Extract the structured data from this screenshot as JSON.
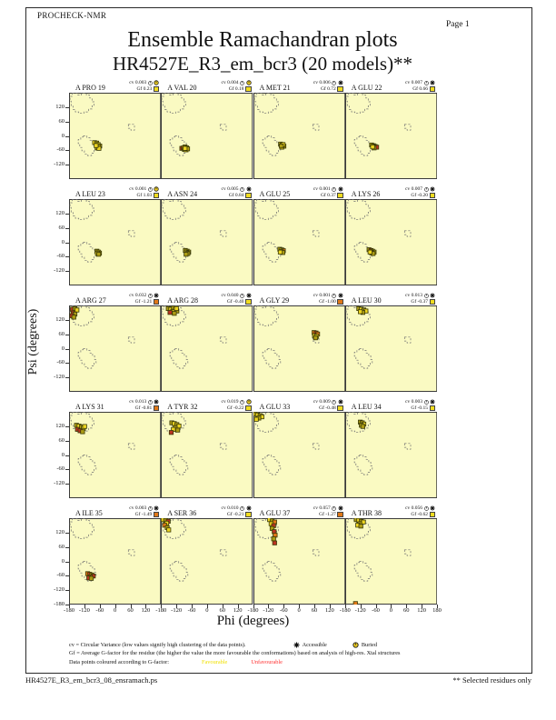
{
  "page": {
    "app_label": "PROCHECK-NMR",
    "page_number_label": "Page  1",
    "title": "Ensemble Ramachandran plots",
    "subtitle": "HR4527E_R3_em_bcr3 (20 models)**",
    "footer_left": "HR4527E_R3_em_bcr3_08_ensramach.ps",
    "footer_right": "** Selected residues only"
  },
  "axes": {
    "x_label": "Phi (degrees)",
    "y_label": "Psi (degrees)",
    "x_ticks_per_plot": [
      -180,
      -120,
      -60,
      0,
      60,
      120
    ],
    "x_end_tick": 180,
    "y_ticks_per_plot": [
      120,
      60,
      0,
      -60,
      -120
    ],
    "y_end_tick": -180
  },
  "legend": {
    "line1_text": "cv = Circular Variance (low values signify high clustering of the data points).",
    "accessible_label": "Accessible",
    "buried_label": "Buried",
    "line2_text": "Gf = Average G-factor for the residue (the higher the value the more favourable the conformations)  based on analysis of high-res. Xtal structures",
    "line3_prefix": "Data points coloured according to G-factor:",
    "favourable_label": "Favourable",
    "unfavourable_label": "Unfavourable"
  },
  "colors": {
    "plot_bg": "#FAFAC2",
    "plot_border": "#3a3a3a",
    "region_stroke": "#707070",
    "point_yellow": "#EDD520",
    "point_olive": "#AC9C14",
    "point_orange": "#E07818",
    "point_red": "#BB3322",
    "swatch_favourable": "#F0DC20",
    "swatch_unfavourable": "#E07818",
    "favourable_text": "#F0E000",
    "unfavourable_text": "#FF3030",
    "buried_fill": "#E8C820"
  },
  "chart_data": {
    "type": "scatter",
    "title": "Ensemble Ramachandran plots",
    "xlabel": "Phi (degrees)",
    "ylabel": "Psi (degrees)",
    "xlim": [
      -180,
      180
    ],
    "ylim": [
      -180,
      180
    ],
    "grid": {
      "rows": 5,
      "cols": 4
    },
    "regions": {
      "beta": [
        [
          -168,
          178
        ],
        [
          -148,
          178
        ],
        [
          -148,
          170
        ],
        [
          -132,
          170
        ],
        [
          -132,
          178
        ],
        [
          -112,
          178
        ],
        [
          -112,
          170
        ],
        [
          -100,
          170
        ],
        [
          -100,
          158
        ],
        [
          -90,
          158
        ],
        [
          -90,
          142
        ],
        [
          -82,
          142
        ],
        [
          -82,
          125
        ],
        [
          -90,
          125
        ],
        [
          -90,
          112
        ],
        [
          -104,
          112
        ],
        [
          -104,
          100
        ],
        [
          -122,
          100
        ],
        [
          -122,
          94
        ],
        [
          -142,
          94
        ],
        [
          -142,
          100
        ],
        [
          -155,
          100
        ],
        [
          -155,
          110
        ],
        [
          -164,
          110
        ],
        [
          -164,
          124
        ],
        [
          -172,
          124
        ],
        [
          -172,
          145
        ],
        [
          -176,
          145
        ],
        [
          -176,
          165
        ],
        [
          -168,
          165
        ]
      ],
      "alpha": [
        [
          -125,
          0
        ],
        [
          -110,
          0
        ],
        [
          -110,
          -8
        ],
        [
          -98,
          -8
        ],
        [
          -98,
          -18
        ],
        [
          -88,
          -18
        ],
        [
          -88,
          -30
        ],
        [
          -80,
          -30
        ],
        [
          -80,
          -45
        ],
        [
          -74,
          -45
        ],
        [
          -74,
          -60
        ],
        [
          -82,
          -60
        ],
        [
          -82,
          -72
        ],
        [
          -92,
          -72
        ],
        [
          -92,
          -82
        ],
        [
          -108,
          -82
        ],
        [
          -108,
          -75
        ],
        [
          -120,
          -75
        ],
        [
          -120,
          -62
        ],
        [
          -130,
          -62
        ],
        [
          -130,
          -48
        ],
        [
          -138,
          -48
        ],
        [
          -138,
          -32
        ],
        [
          -144,
          -32
        ],
        [
          -144,
          -15
        ],
        [
          -134,
          -15
        ],
        [
          -134,
          -5
        ],
        [
          -125,
          -5
        ]
      ],
      "left_alpha": [
        [
          52,
          48
        ],
        [
          76,
          48
        ],
        [
          76,
          24
        ],
        [
          62,
          24
        ],
        [
          62,
          32
        ],
        [
          52,
          32
        ]
      ]
    },
    "subplots": [
      {
        "label": "A PRO 19",
        "cv": "0.003",
        "gf": "0.23",
        "access": "buried",
        "gf_class": "favourable",
        "points": [
          [
            -80,
            -28,
            "y"
          ],
          [
            -72,
            -30,
            "o"
          ],
          [
            -66,
            -36,
            "y"
          ],
          [
            -60,
            -42,
            "o"
          ],
          [
            -66,
            -44,
            "y"
          ],
          [
            -70,
            -50,
            "o"
          ],
          [
            -63,
            -52,
            "y"
          ],
          [
            -74,
            -40,
            "y"
          ]
        ]
      },
      {
        "label": "A VAL 20",
        "cv": "0.004",
        "gf": "0.18",
        "access": "buried",
        "gf_class": "favourable",
        "points": [
          [
            -98,
            -52,
            "r"
          ],
          [
            -92,
            -50,
            "O"
          ],
          [
            -85,
            -46,
            "o"
          ],
          [
            -79,
            -50,
            "y"
          ],
          [
            -88,
            -56,
            "o"
          ],
          [
            -81,
            -58,
            "y"
          ],
          [
            -75,
            -54,
            "o"
          ],
          [
            -85,
            -52,
            "y"
          ]
        ]
      },
      {
        "label": "A MET 21",
        "cv": "0.006",
        "gf": "0.72",
        "access": "accessible",
        "gf_class": "favourable",
        "points": [
          [
            -74,
            -34,
            "o"
          ],
          [
            -67,
            -38,
            "y"
          ],
          [
            -61,
            -43,
            "o"
          ],
          [
            -69,
            -47,
            "y"
          ],
          [
            -64,
            -36,
            "y"
          ],
          [
            -71,
            -42,
            "o"
          ]
        ]
      },
      {
        "label": "A GLU 22",
        "cv": "0.007",
        "gf": "0.66",
        "access": "accessible",
        "gf_class": "favourable",
        "points": [
          [
            -77,
            -38,
            "o"
          ],
          [
            -69,
            -41,
            "y"
          ],
          [
            -63,
            -44,
            "y"
          ],
          [
            -57,
            -47,
            "r"
          ],
          [
            -67,
            -50,
            "o"
          ],
          [
            -73,
            -46,
            "y"
          ]
        ]
      },
      {
        "label": "A LEU 23",
        "cv": "0.001",
        "gf": "1.03",
        "access": "buried",
        "gf_class": "favourable",
        "points": [
          [
            -71,
            -37,
            "o"
          ],
          [
            -65,
            -41,
            "y"
          ],
          [
            -61,
            -45,
            "o"
          ],
          [
            -69,
            -46,
            "y"
          ],
          [
            -64,
            -50,
            "o"
          ]
        ]
      },
      {
        "label": "A ASN 24",
        "cv": "0.005",
        "gf": "0.84",
        "access": "accessible",
        "gf_class": "favourable",
        "points": [
          [
            -84,
            -34,
            "o"
          ],
          [
            -77,
            -37,
            "y"
          ],
          [
            -71,
            -41,
            "o"
          ],
          [
            -79,
            -44,
            "y"
          ],
          [
            -74,
            -47,
            "o"
          ],
          [
            -81,
            -50,
            "o"
          ]
        ]
      },
      {
        "label": "A GLU 25",
        "cv": "0.001",
        "gf": "0.37",
        "access": "accessible",
        "gf_class": "favourable",
        "points": [
          [
            -77,
            -29,
            "o"
          ],
          [
            -69,
            -32,
            "y"
          ],
          [
            -63,
            -35,
            "O"
          ],
          [
            -71,
            -39,
            "y"
          ],
          [
            -65,
            -43,
            "o"
          ],
          [
            -75,
            -41,
            "y"
          ]
        ]
      },
      {
        "label": "A LYS 26",
        "cv": "0.007",
        "gf": "-0.20",
        "access": "accessible",
        "gf_class": "favourable",
        "points": [
          [
            -87,
            -31,
            "o"
          ],
          [
            -79,
            -34,
            "r"
          ],
          [
            -73,
            -37,
            "y"
          ],
          [
            -67,
            -41,
            "o"
          ],
          [
            -77,
            -44,
            "r"
          ],
          [
            -71,
            -47,
            "o"
          ],
          [
            -83,
            -41,
            "y"
          ]
        ]
      },
      {
        "label": "A ARG 27",
        "cv": "0.032",
        "gf": "-1.21",
        "access": "accessible",
        "gf_class": "unfavourable",
        "points": [
          [
            -167,
            164,
            "r"
          ],
          [
            -157,
            167,
            "o"
          ],
          [
            -149,
            161,
            "y"
          ],
          [
            -164,
            149,
            "r"
          ],
          [
            -157,
            144,
            "o"
          ],
          [
            -169,
            137,
            "r"
          ],
          [
            -161,
            131,
            "o"
          ]
        ]
      },
      {
        "label": "A ARG 28",
        "cv": "0.040",
        "gf": "-0.40",
        "access": "accessible",
        "gf_class": "favourable",
        "points": [
          [
            -151,
            167,
            "o"
          ],
          [
            -141,
            164,
            "y"
          ],
          [
            -131,
            169,
            "o"
          ],
          [
            -124,
            161,
            "y"
          ],
          [
            -117,
            157,
            "o"
          ],
          [
            -134,
            154,
            "y"
          ],
          [
            -127,
            147,
            "o"
          ],
          [
            -144,
            151,
            "r"
          ],
          [
            -119,
            167,
            "y"
          ]
        ]
      },
      {
        "label": "A GLY 29",
        "cv": "0.001",
        "gf": "-1.00",
        "access": "accessible",
        "gf_class": "unfavourable",
        "points": [
          [
            57,
            67,
            "O"
          ],
          [
            65,
            65,
            "r"
          ],
          [
            71,
            61,
            "O"
          ],
          [
            59,
            54,
            "y"
          ],
          [
            67,
            51,
            "y"
          ],
          [
            63,
            45,
            "o"
          ]
        ]
      },
      {
        "label": "A LEU 30",
        "cv": "0.013",
        "gf": "-0.37",
        "access": "accessible",
        "gf_class": "favourable",
        "points": [
          [
            -127,
            167,
            "o"
          ],
          [
            -117,
            164,
            "y"
          ],
          [
            -107,
            161,
            "o"
          ],
          [
            -99,
            157,
            "y"
          ],
          [
            -111,
            151,
            "o"
          ],
          [
            -121,
            154,
            "y"
          ]
        ]
      },
      {
        "label": "A LYS 31",
        "cv": "0.013",
        "gf": "-0.81",
        "access": "accessible",
        "gf_class": "unfavourable",
        "points": [
          [
            -151,
            124,
            "o"
          ],
          [
            -141,
            121,
            "y"
          ],
          [
            -131,
            117,
            "o"
          ],
          [
            -124,
            111,
            "y"
          ],
          [
            -147,
            107,
            "r"
          ],
          [
            -137,
            101,
            "r"
          ],
          [
            -127,
            97,
            "o"
          ],
          [
            -119,
            119,
            "y"
          ]
        ]
      },
      {
        "label": "A TYR 32",
        "cv": "0.019",
        "gf": "-0.22",
        "access": "buried",
        "gf_class": "favourable",
        "points": [
          [
            -137,
            134,
            "o"
          ],
          [
            -127,
            131,
            "y"
          ],
          [
            -117,
            127,
            "o"
          ],
          [
            -109,
            121,
            "y"
          ],
          [
            -124,
            114,
            "o"
          ],
          [
            -131,
            107,
            "y"
          ],
          [
            -139,
            94,
            "r"
          ],
          [
            -114,
            104,
            "o"
          ]
        ]
      },
      {
        "label": "A GLU 33",
        "cv": "0.009",
        "gf": "-0.48",
        "access": "accessible",
        "gf_class": "favourable",
        "points": [
          [
            -174,
            171,
            "o"
          ],
          [
            -164,
            167,
            "y"
          ],
          [
            -154,
            164,
            "o"
          ],
          [
            -147,
            159,
            "y"
          ],
          [
            -159,
            154,
            "o"
          ],
          [
            -169,
            149,
            "y"
          ]
        ]
      },
      {
        "label": "A LEU 34",
        "cv": "0.003",
        "gf": "-0.15",
        "access": "accessible",
        "gf_class": "favourable",
        "points": [
          [
            -121,
            137,
            "o"
          ],
          [
            -113,
            134,
            "o"
          ],
          [
            -107,
            129,
            "y"
          ],
          [
            -117,
            124,
            "o"
          ],
          [
            -111,
            119,
            "o"
          ]
        ]
      },
      {
        "label": "A ILE 35",
        "cv": "0.003",
        "gf": "-1.49",
        "access": "accessible",
        "gf_class": "unfavourable",
        "points": [
          [
            -107,
            -51,
            "O"
          ],
          [
            -99,
            -54,
            "r"
          ],
          [
            -91,
            -57,
            "o"
          ],
          [
            -85,
            -61,
            "r"
          ],
          [
            -97,
            -65,
            "O"
          ],
          [
            -103,
            -69,
            "r"
          ],
          [
            -93,
            -71,
            "o"
          ]
        ]
      },
      {
        "label": "A SER 36",
        "cv": "0.010",
        "gf": "-0.21",
        "access": "accessible",
        "gf_class": "favourable",
        "points": [
          [
            -171,
            174,
            "y"
          ],
          [
            -161,
            171,
            "o"
          ],
          [
            -151,
            167,
            "r"
          ],
          [
            -157,
            159,
            "y"
          ],
          [
            -165,
            151,
            "O"
          ],
          [
            -155,
            141,
            "o"
          ],
          [
            -149,
            131,
            "y"
          ]
        ]
      },
      {
        "label": "A GLU 37",
        "cv": "0.057",
        "gf": "-1.27",
        "access": "accessible",
        "gf_class": "unfavourable",
        "points": [
          [
            -117,
            174,
            "y"
          ],
          [
            -107,
            169,
            "o"
          ],
          [
            -97,
            164,
            "O"
          ],
          [
            -111,
            157,
            "y"
          ],
          [
            -101,
            149,
            "r"
          ],
          [
            -107,
            137,
            "o"
          ],
          [
            -99,
            124,
            "r"
          ],
          [
            -95,
            109,
            "O"
          ],
          [
            -101,
            94,
            "o"
          ],
          [
            -97,
            77,
            "r"
          ]
        ]
      },
      {
        "label": "A THR 38",
        "cv": "0.056",
        "gf": "-0.62",
        "access": "accessible",
        "gf_class": "favourable",
        "points": [
          [
            -137,
            174,
            "o"
          ],
          [
            -127,
            171,
            "y"
          ],
          [
            -117,
            167,
            "o"
          ],
          [
            -109,
            164,
            "y"
          ],
          [
            -123,
            157,
            "o"
          ],
          [
            -131,
            151,
            "y"
          ],
          [
            -119,
            147,
            "o"
          ],
          [
            -140,
            -176,
            "O"
          ]
        ]
      }
    ]
  }
}
